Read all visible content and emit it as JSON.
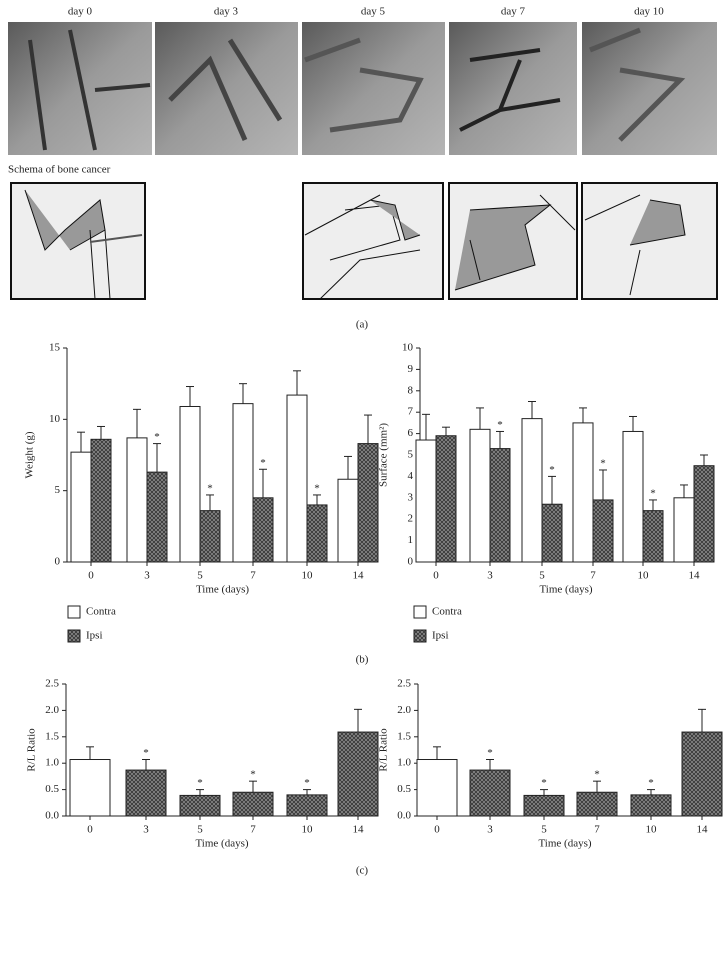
{
  "panel_a": {
    "day_labels": [
      "day 0",
      "day 3",
      "day 5",
      "day 7",
      "day 10"
    ],
    "schema_title": "Schema of bone cancer",
    "label": "(a)"
  },
  "panel_b_label": "(b)",
  "panel_c_label": "(c)",
  "chart_data": [
    {
      "type": "bar",
      "categories": [
        "0",
        "3",
        "5",
        "7",
        "10",
        "14"
      ],
      "x_label": "Time (days)",
      "y_label": "Weight (g)",
      "ylim": [
        0,
        15
      ],
      "yticks": [
        0,
        5,
        10,
        15
      ],
      "legend": "bottom-left",
      "series": [
        {
          "name": "Contra",
          "fill": "solid",
          "color": "#ffffff",
          "values": [
            7.7,
            8.7,
            10.9,
            11.1,
            11.7,
            5.8
          ],
          "errors": [
            1.4,
            2.0,
            1.4,
            1.4,
            1.7,
            1.6
          ],
          "significance": [
            null,
            null,
            null,
            null,
            null,
            null
          ]
        },
        {
          "name": "Ipsi",
          "fill": "hatched",
          "color": "#7a7a7a",
          "values": [
            8.6,
            6.3,
            3.6,
            4.5,
            4.0,
            8.3
          ],
          "errors": [
            0.9,
            2.0,
            1.1,
            2.0,
            0.7,
            2.0
          ],
          "significance": [
            null,
            "*",
            "*",
            "*",
            "*",
            null
          ]
        }
      ]
    },
    {
      "type": "bar",
      "categories": [
        "0",
        "3",
        "5",
        "7",
        "10",
        "14"
      ],
      "x_label": "Time (days)",
      "y_label": "Surface (mm²)",
      "ylim": [
        0,
        10
      ],
      "yticks": [
        0,
        1,
        2,
        3,
        4,
        5,
        6,
        7,
        8,
        9,
        10
      ],
      "legend": "bottom-left",
      "series": [
        {
          "name": "Contra",
          "fill": "solid",
          "color": "#ffffff",
          "values": [
            5.7,
            6.2,
            6.7,
            6.5,
            6.1,
            3.0
          ],
          "errors": [
            1.2,
            1.0,
            0.8,
            0.7,
            0.7,
            0.6
          ],
          "significance": [
            null,
            null,
            null,
            null,
            null,
            null
          ]
        },
        {
          "name": "Ipsi",
          "fill": "hatched",
          "color": "#7a7a7a",
          "values": [
            5.9,
            5.3,
            2.7,
            2.9,
            2.4,
            4.5
          ],
          "errors": [
            0.4,
            0.8,
            1.3,
            1.4,
            0.5,
            0.5
          ],
          "significance": [
            null,
            "*",
            "*",
            "*",
            "*",
            null
          ]
        }
      ]
    },
    {
      "type": "bar",
      "categories": [
        "0",
        "3",
        "5",
        "7",
        "10",
        "14"
      ],
      "x_label": "Time (days)",
      "y_label": "R/L Ratio",
      "ylim": [
        0,
        2.5
      ],
      "yticks": [
        {
          "value": 0,
          "label": "0.0"
        },
        0.5,
        {
          "value": 1,
          "label": "1.0"
        },
        1.5,
        {
          "value": 2,
          "label": "2.0"
        },
        2.5
      ],
      "series": [
        {
          "color": "#7a7a7a",
          "fills": [
            "solid",
            "hatched",
            "hatched",
            "hatched",
            "hatched",
            "hatched"
          ],
          "values": [
            1.07,
            0.87,
            0.39,
            0.45,
            0.4,
            1.59
          ],
          "errors": [
            0.24,
            0.2,
            0.11,
            0.21,
            0.1,
            0.43
          ],
          "significance": [
            null,
            "*",
            "*",
            "*",
            "*",
            null
          ]
        }
      ]
    },
    {
      "type": "bar",
      "categories": [
        "0",
        "3",
        "5",
        "7",
        "10",
        "14"
      ],
      "x_label": "Time (days)",
      "y_label": "R/L Ratio",
      "ylim": [
        0,
        2.5
      ],
      "yticks": [
        {
          "value": 0,
          "label": "0.0"
        },
        0.5,
        {
          "value": 1,
          "label": "1.0"
        },
        1.5,
        {
          "value": 2,
          "label": "2.0"
        },
        2.5
      ],
      "series": [
        {
          "color": "#7a7a7a",
          "fills": [
            "solid",
            "hatched",
            "hatched",
            "hatched",
            "hatched",
            "hatched"
          ],
          "values": [
            1.07,
            0.87,
            0.39,
            0.45,
            0.4,
            1.59
          ],
          "errors": [
            0.24,
            0.2,
            0.11,
            0.21,
            0.1,
            0.43
          ],
          "significance": [
            null,
            "*",
            "*",
            "*",
            "*",
            null
          ]
        }
      ]
    }
  ]
}
